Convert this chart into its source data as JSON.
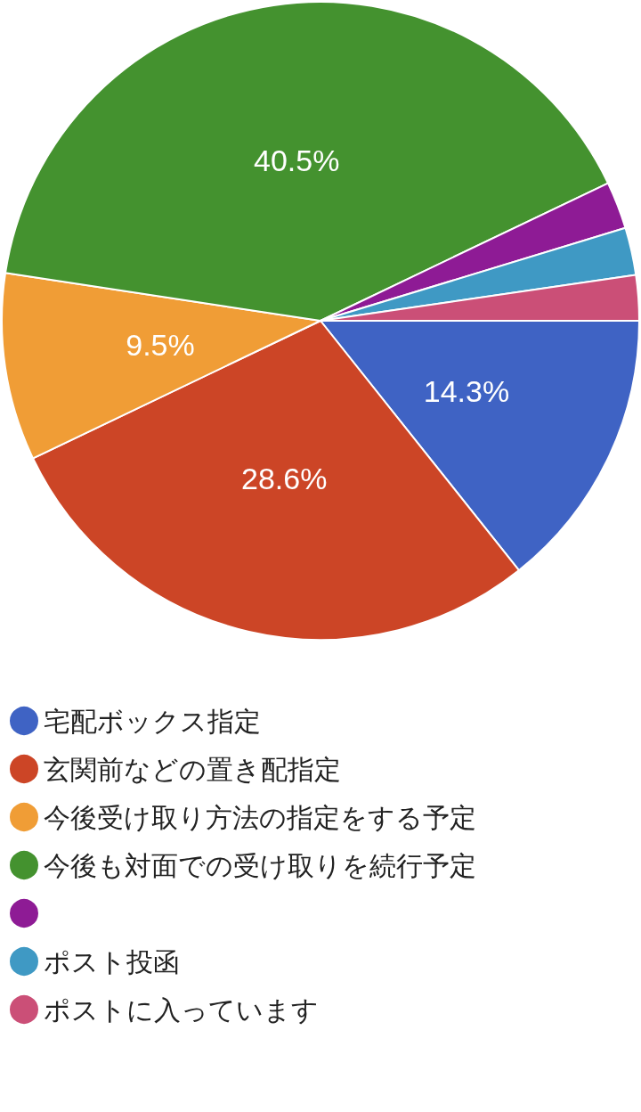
{
  "chart_data": {
    "type": "pie",
    "categories": [
      "宅配ボックス指定",
      "玄関前などの置き配指定",
      "今後受け取り方法の指定をする予定",
      "今後も対面での受け取りを続行予定",
      null,
      "ポスト投函",
      "ポストに入っています"
    ],
    "values": [
      14.3,
      28.6,
      9.5,
      40.5,
      2.4,
      2.4,
      2.3
    ],
    "colors": [
      "#3f63c4",
      "#cc4526",
      "#f09d36",
      "#44922f",
      "#8e1b95",
      "#3f99c4",
      "#cb4f77"
    ],
    "value_labels": [
      "14.3%",
      "28.6%",
      "9.5%",
      "40.5%",
      null,
      null,
      null
    ],
    "legend": "bottom"
  }
}
